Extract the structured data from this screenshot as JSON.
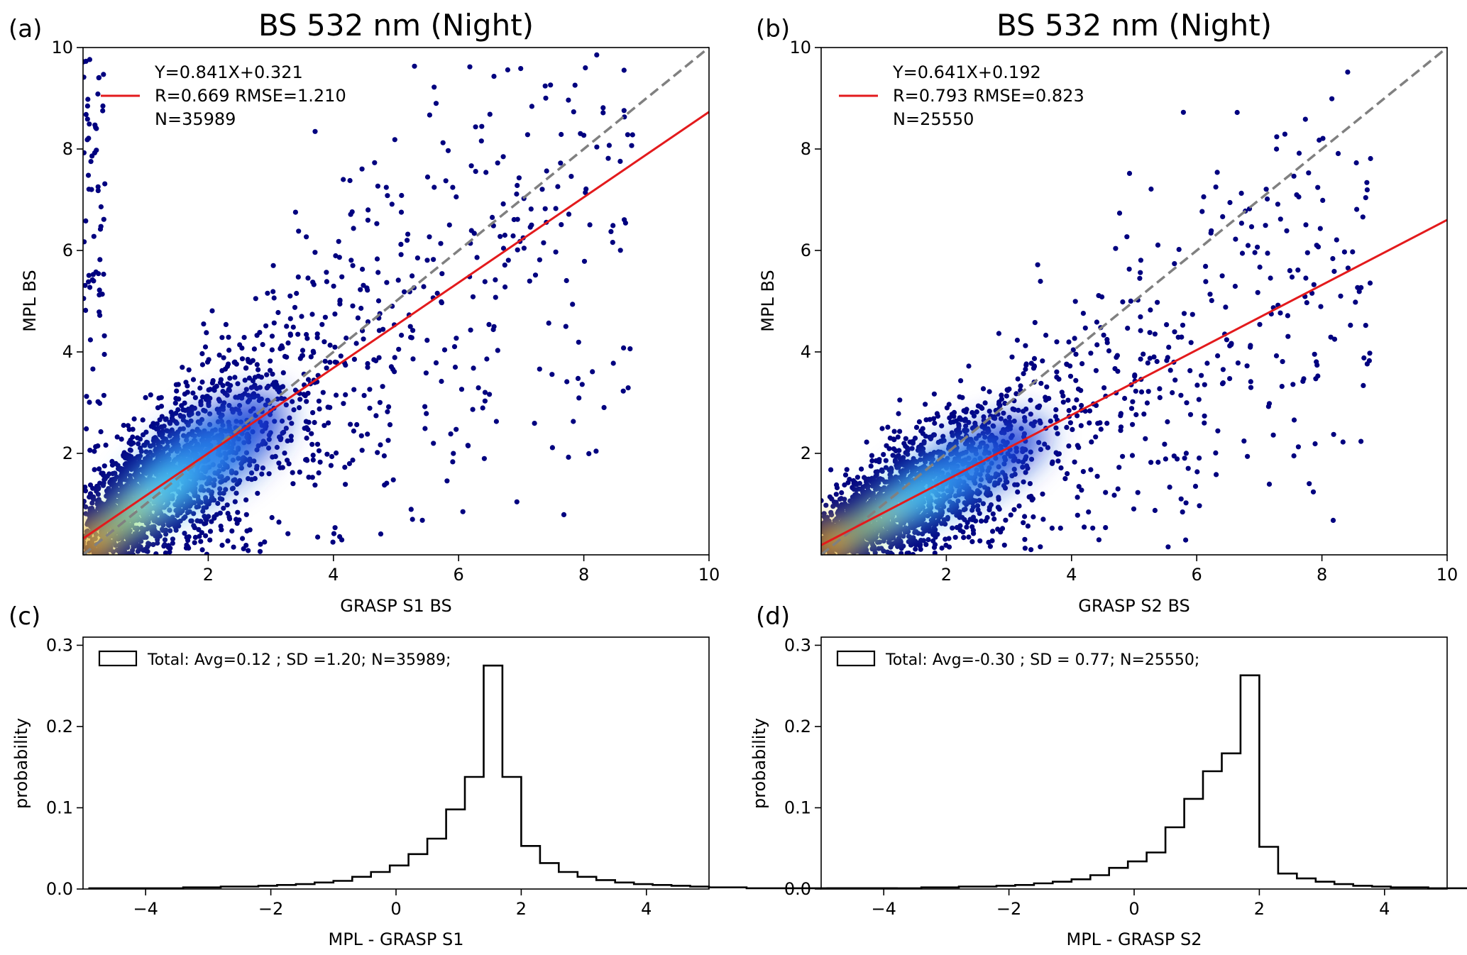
{
  "figure": {
    "panels": [
      {
        "id": "a",
        "label": "(a)",
        "title": "BS 532 nm (Night)"
      },
      {
        "id": "b",
        "label": "(b)",
        "title": "BS 532 nm (Night)"
      },
      {
        "id": "c",
        "label": "(c)",
        "title": ""
      },
      {
        "id": "d",
        "label": "(d)",
        "title": ""
      }
    ]
  },
  "colors": {
    "scatter_low": "#00007f",
    "fit_line": "#e31a1c",
    "one_to_one": "#808080",
    "hist": "#000000"
  },
  "chart_data": [
    {
      "panel": "a",
      "type": "scatter",
      "title": "BS 532 nm (Night)",
      "xlabel": "GRASP S1 BS",
      "ylabel": "MPL BS",
      "xlim": [
        0,
        10
      ],
      "ylim": [
        0,
        10
      ],
      "xticks": [
        2,
        4,
        6,
        8,
        10
      ],
      "yticks": [
        2,
        4,
        6,
        8,
        10
      ],
      "fit": {
        "slope": 0.841,
        "intercept": 0.321
      },
      "one_to_one": true,
      "legend": {
        "placement": "top-left",
        "lines": [
          "Y=0.841X+0.321",
          "R=0.669  RMSE=1.210",
          "N=35989"
        ]
      },
      "stats": {
        "slope": 0.841,
        "intercept": 0.321,
        "R": 0.669,
        "RMSE": 1.21,
        "N": 35989
      },
      "cloud": {
        "center": [
          2.0,
          2.0
        ],
        "spread": [
          1.2,
          0.9
        ]
      }
    },
    {
      "panel": "b",
      "type": "scatter",
      "title": "BS 532 nm (Night)",
      "xlabel": "GRASP S2 BS",
      "ylabel": "MPL BS",
      "xlim": [
        0,
        10
      ],
      "ylim": [
        0,
        10
      ],
      "xticks": [
        2,
        4,
        6,
        8,
        10
      ],
      "yticks": [
        2,
        4,
        6,
        8,
        10
      ],
      "fit": {
        "slope": 0.641,
        "intercept": 0.192
      },
      "one_to_one": true,
      "legend": {
        "placement": "top-left",
        "lines": [
          "Y=0.641X+0.192",
          "R=0.793  RMSE=0.823",
          "N=25550"
        ]
      },
      "stats": {
        "slope": 0.641,
        "intercept": 0.192,
        "R": 0.793,
        "RMSE": 0.823,
        "N": 25550
      },
      "cloud": {
        "center": [
          2.3,
          1.7
        ],
        "spread": [
          1.2,
          0.7
        ]
      }
    },
    {
      "panel": "c",
      "type": "bar",
      "style": "step-histogram",
      "xlabel": "MPL - GRASP S1",
      "ylabel": "probability",
      "xlim": [
        -5,
        5
      ],
      "ylim": [
        0,
        0.31
      ],
      "xticks": [
        -4,
        -2,
        0,
        2,
        4
      ],
      "yticks": [
        0.0,
        0.1,
        0.2,
        0.3
      ],
      "bin_width": 0.3,
      "bin_edges_start": -4.9,
      "values": [
        0.001,
        0.001,
        0.001,
        0.001,
        0.001,
        0.002,
        0.002,
        0.003,
        0.003,
        0.004,
        0.005,
        0.006,
        0.008,
        0.01,
        0.015,
        0.021,
        0.029,
        0.043,
        0.062,
        0.098,
        0.138,
        0.275,
        0.138,
        0.053,
        0.032,
        0.021,
        0.015,
        0.011,
        0.008,
        0.006,
        0.005,
        0.004,
        0.003,
        0.002,
        0.002,
        0.001,
        0.001,
        0.001,
        0.001,
        0.001,
        0.001,
        0.001,
        0.001
      ],
      "legend": {
        "placement": "top-left",
        "text": "Total: Avg=0.12 ; SD =1.20; N=35989;"
      },
      "stats": {
        "avg": 0.12,
        "sd": 1.2,
        "N": 35989
      }
    },
    {
      "panel": "d",
      "type": "bar",
      "style": "step-histogram",
      "xlabel": "MPL - GRASP S2",
      "ylabel": "probability",
      "xlim": [
        -5,
        5
      ],
      "ylim": [
        0,
        0.31
      ],
      "xticks": [
        -4,
        -2,
        0,
        2,
        4
      ],
      "yticks": [
        0.0,
        0.1,
        0.2,
        0.3
      ],
      "bin_width": 0.3,
      "bin_edges_start": -4.9,
      "values": [
        0.001,
        0.001,
        0.001,
        0.001,
        0.001,
        0.002,
        0.002,
        0.003,
        0.003,
        0.004,
        0.005,
        0.007,
        0.009,
        0.012,
        0.017,
        0.026,
        0.034,
        0.045,
        0.076,
        0.111,
        0.145,
        0.167,
        0.263,
        0.052,
        0.019,
        0.013,
        0.009,
        0.006,
        0.004,
        0.003,
        0.002,
        0.002,
        0.001,
        0.001,
        0.001,
        0.001,
        0.001,
        0.001,
        0.001,
        0.001,
        0.001,
        0.001,
        0.001
      ],
      "legend": {
        "placement": "top-left",
        "text": "Total: Avg=-0.30 ; SD = 0.77; N=25550;"
      },
      "stats": {
        "avg": -0.3,
        "sd": 0.77,
        "N": 25550
      }
    }
  ]
}
